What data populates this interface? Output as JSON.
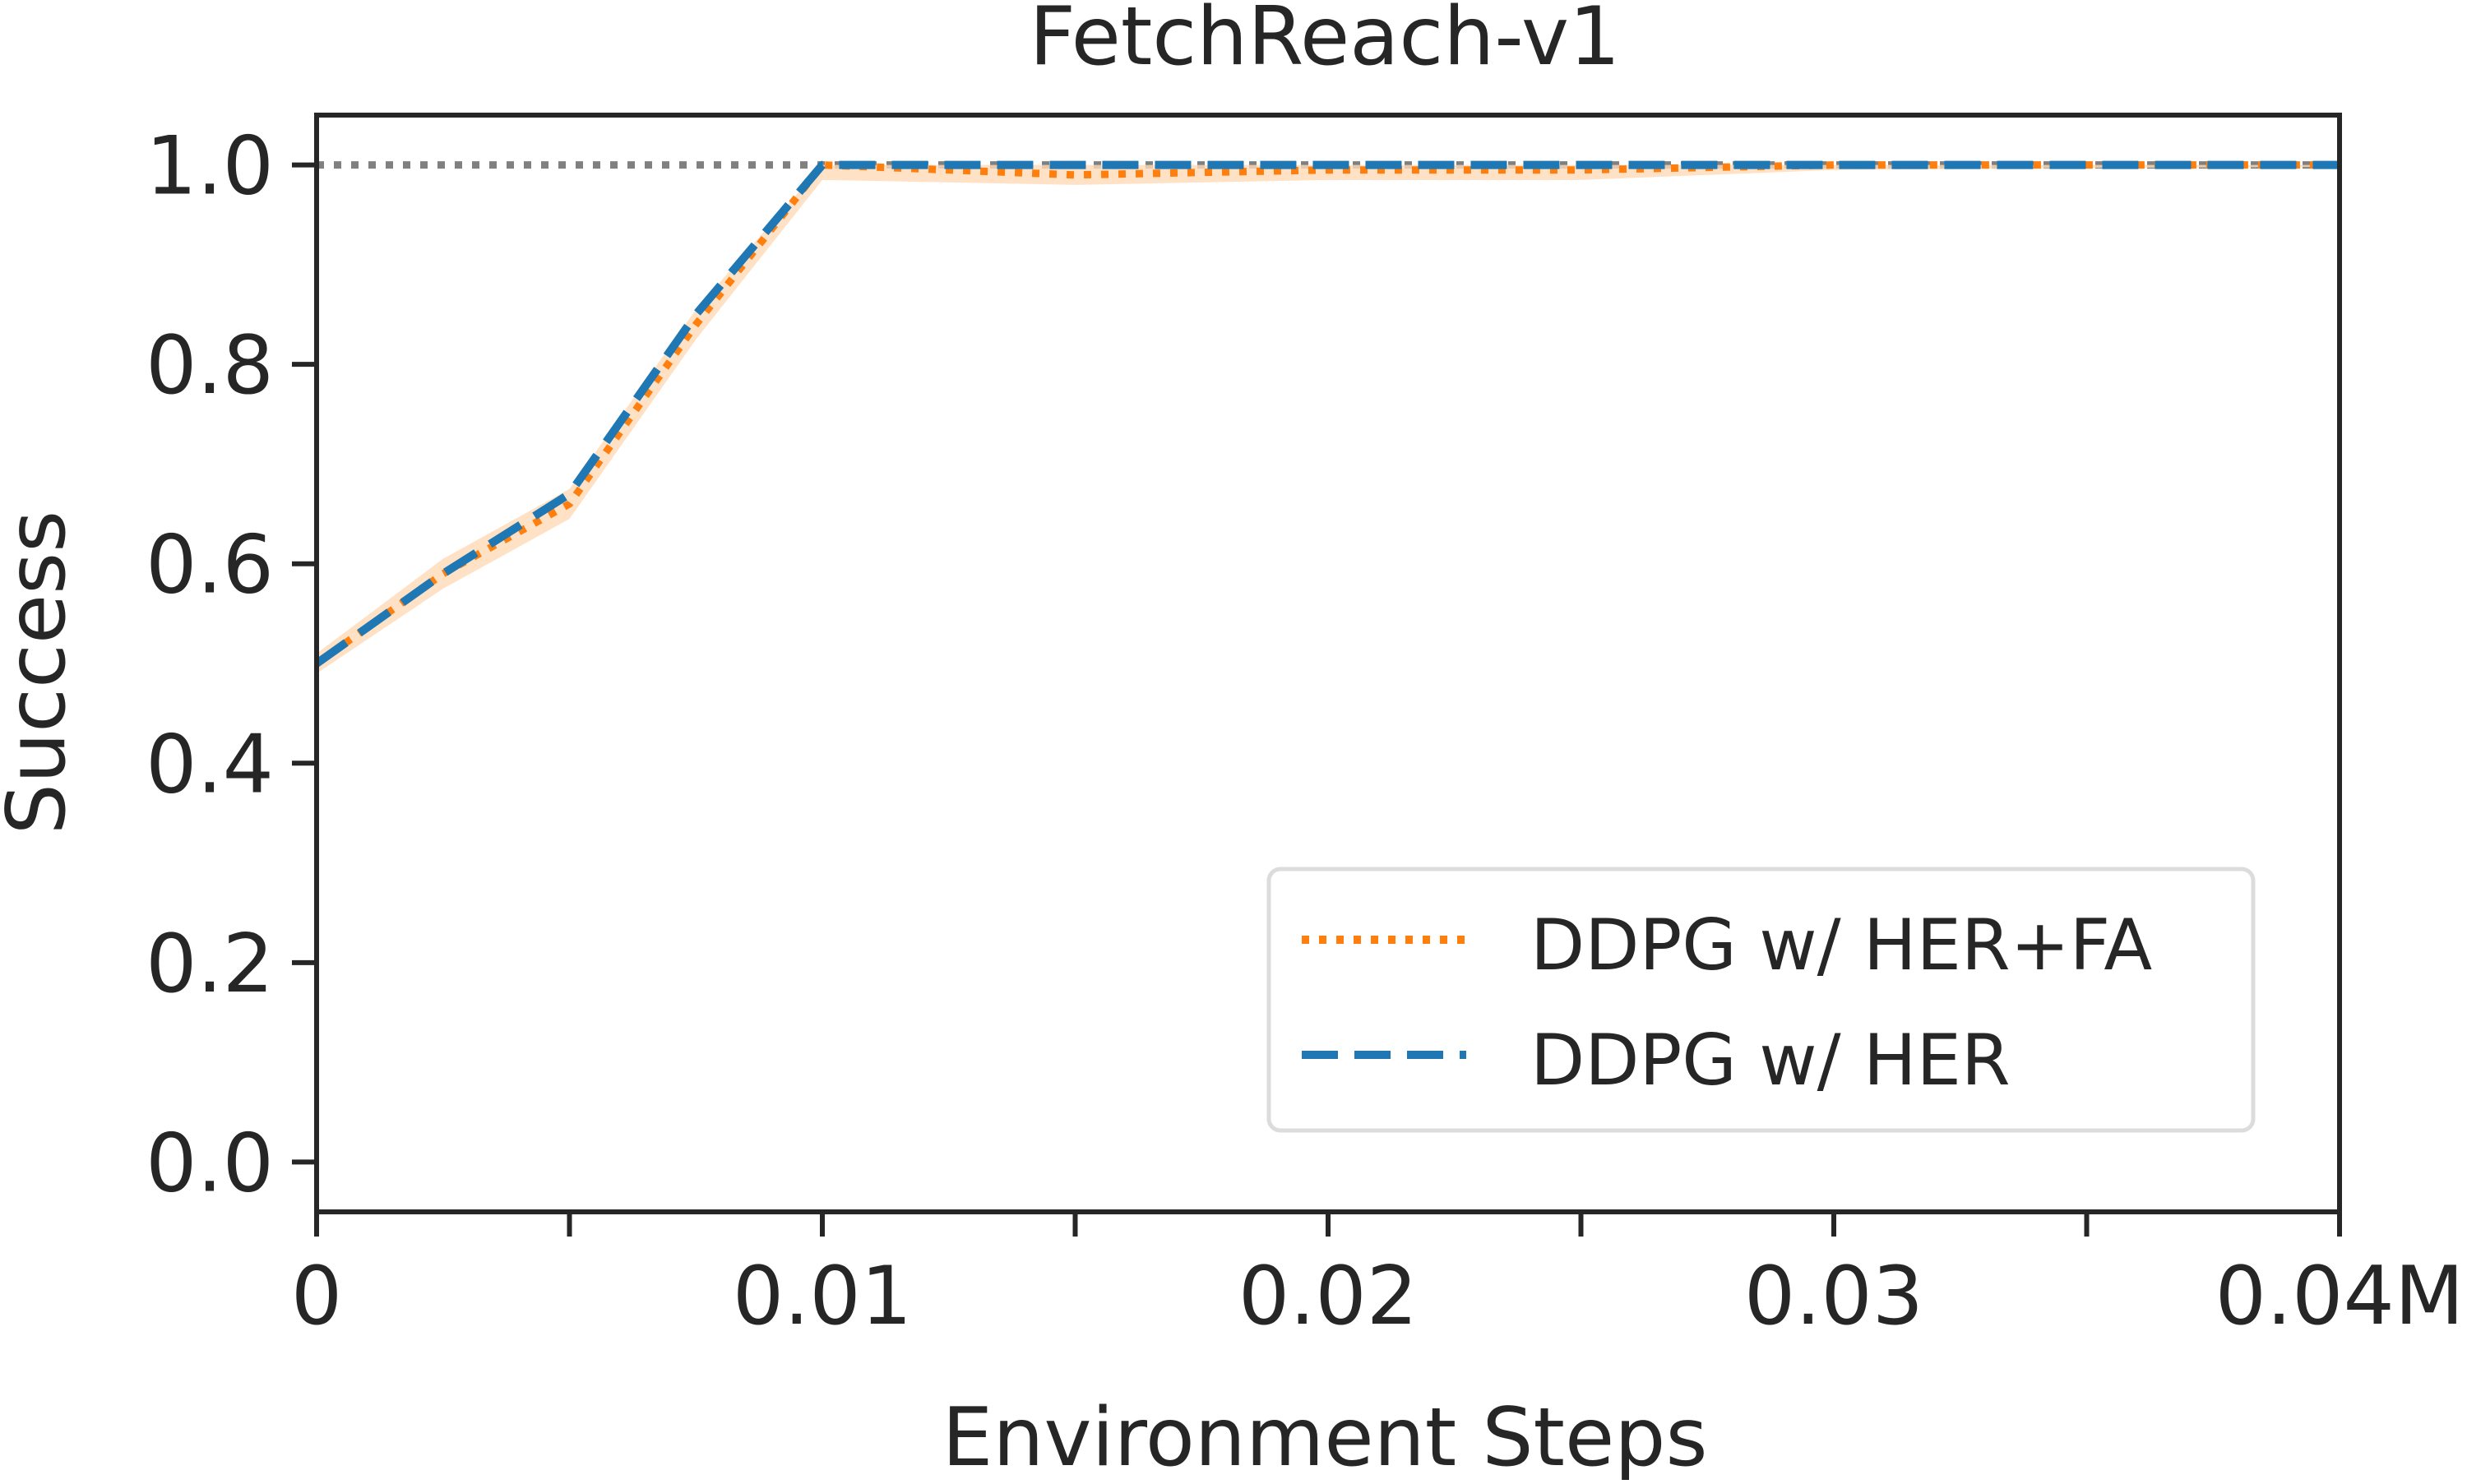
{
  "chart_data": {
    "type": "line",
    "title": "FetchReach-v1",
    "xlabel": "Environment Steps",
    "ylabel": "Success",
    "xlim": [
      0,
      0.04
    ],
    "ylim": [
      -0.05,
      1.05
    ],
    "x_ticks": [
      0,
      0.005,
      0.01,
      0.015,
      0.02,
      0.025,
      0.03,
      0.035,
      0.04
    ],
    "x_tick_labels": [
      {
        "value": 0,
        "label": "0"
      },
      {
        "value": 0.01,
        "label": "0.01"
      },
      {
        "value": 0.02,
        "label": "0.02"
      },
      {
        "value": 0.03,
        "label": "0.03"
      },
      {
        "value": 0.04,
        "label": "0.04M"
      }
    ],
    "y_ticks": [
      {
        "value": 0.0,
        "label": "0.0"
      },
      {
        "value": 0.2,
        "label": "0.2"
      },
      {
        "value": 0.4,
        "label": "0.4"
      },
      {
        "value": 0.6,
        "label": "0.6"
      },
      {
        "value": 0.8,
        "label": "0.8"
      },
      {
        "value": 1.0,
        "label": "1.0"
      }
    ],
    "reference_line": {
      "y": 1.0,
      "color": "#808080",
      "style": "dotted"
    },
    "grid": false,
    "legend_position": "bottom-right",
    "series": [
      {
        "name": "DDPG w/ HER+FA",
        "color": "#ff7f0e",
        "style": "dotted",
        "band_color": "#ffd9b8",
        "x": [
          0,
          0.0025,
          0.005,
          0.0075,
          0.01,
          0.015,
          0.02,
          0.025,
          0.03,
          0.035,
          0.04
        ],
        "y": [
          0.5,
          0.59,
          0.66,
          0.84,
          1.0,
          0.99,
          0.995,
          0.995,
          1.0,
          1.0,
          1.0
        ],
        "band_low": [
          0.49,
          0.575,
          0.645,
          0.825,
          0.985,
          0.98,
          0.985,
          0.985,
          0.995,
          0.997,
          0.998
        ],
        "band_high": [
          0.51,
          0.605,
          0.675,
          0.855,
          1.0,
          1.0,
          1.0,
          1.0,
          1.0,
          1.0,
          1.0
        ]
      },
      {
        "name": "DDPG w/ HER",
        "color": "#1f77b4",
        "style": "dashed",
        "x": [
          0,
          0.0025,
          0.005,
          0.0075,
          0.01,
          0.015,
          0.02,
          0.025,
          0.03,
          0.035,
          0.04
        ],
        "y": [
          0.5,
          0.59,
          0.67,
          0.85,
          1.0,
          1.0,
          1.0,
          1.0,
          1.0,
          1.0,
          1.0
        ]
      }
    ]
  }
}
